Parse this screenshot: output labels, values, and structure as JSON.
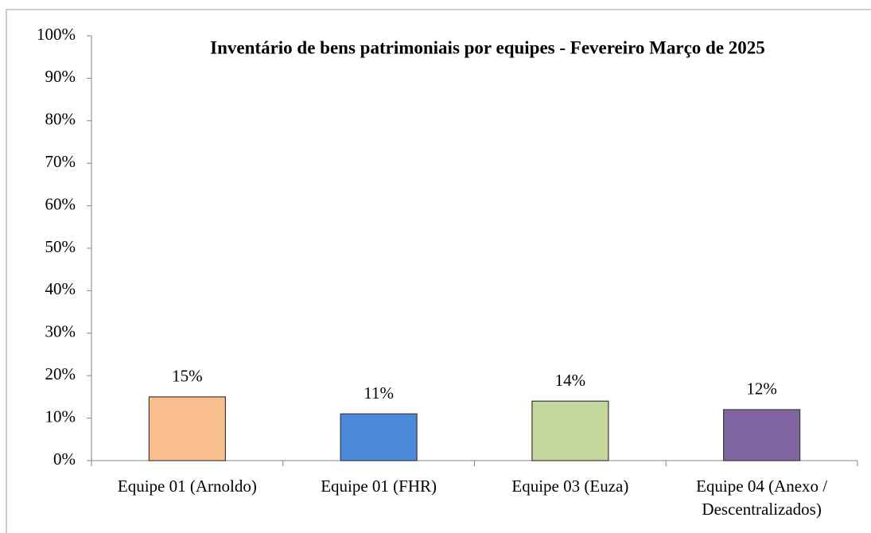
{
  "chart_data": {
    "type": "bar",
    "title": "Inventário de bens patrimoniais por equipes - Fevereiro Março de 2025",
    "categories": [
      "Equipe 01 (Arnoldo)",
      "Equipe 01 (FHR)",
      "Equipe 03 (Euza)",
      "Equipe 04 (Anexo / Descentralizados)"
    ],
    "values": [
      15,
      11,
      14,
      12
    ],
    "value_labels": [
      "15%",
      "11%",
      "14%",
      "12%"
    ],
    "colors": [
      "#f9c08e",
      "#4a8ad8",
      "#c3d69b",
      "#8064a2"
    ],
    "ylim": [
      0,
      100
    ],
    "yticks": [
      {
        "value": 0,
        "label": "0%"
      },
      {
        "value": 10,
        "label": "10%"
      },
      {
        "value": 20,
        "label": "20%"
      },
      {
        "value": 30,
        "label": "30%"
      },
      {
        "value": 40,
        "label": "40%"
      },
      {
        "value": 50,
        "label": "50%"
      },
      {
        "value": 60,
        "label": "60%"
      },
      {
        "value": 70,
        "label": "70%"
      },
      {
        "value": 80,
        "label": "80%"
      },
      {
        "value": 90,
        "label": "90%"
      },
      {
        "value": 100,
        "label": "100%"
      }
    ],
    "grid": false
  }
}
